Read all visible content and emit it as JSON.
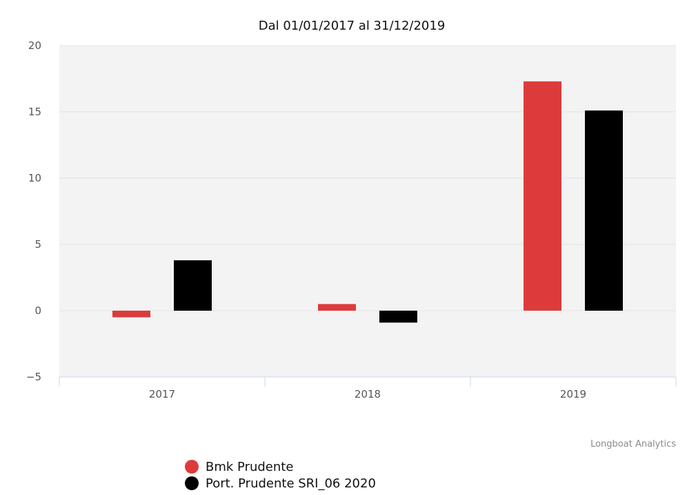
{
  "chart_data": {
    "type": "bar",
    "title": "Dal 01/01/2017 al 31/12/2019",
    "categories": [
      "2017",
      "2018",
      "2019"
    ],
    "series": [
      {
        "name": "Bmk Prudente",
        "color": "#dd3b3b",
        "values": [
          -0.5,
          0.5,
          17.3
        ]
      },
      {
        "name": "Port. Prudente SRI_06 2020",
        "color": "#000000",
        "values": [
          3.8,
          -0.9,
          15.1
        ]
      }
    ],
    "y_ticks": [
      "20",
      "15",
      "10",
      "5",
      "0",
      "−5"
    ],
    "ylim": [
      -5,
      20
    ],
    "xlabel": "",
    "ylabel": "",
    "grid": true,
    "plot_background": "#f3f3f3",
    "legend_position": "bottom-left"
  },
  "credit": "Longboat Analytics"
}
